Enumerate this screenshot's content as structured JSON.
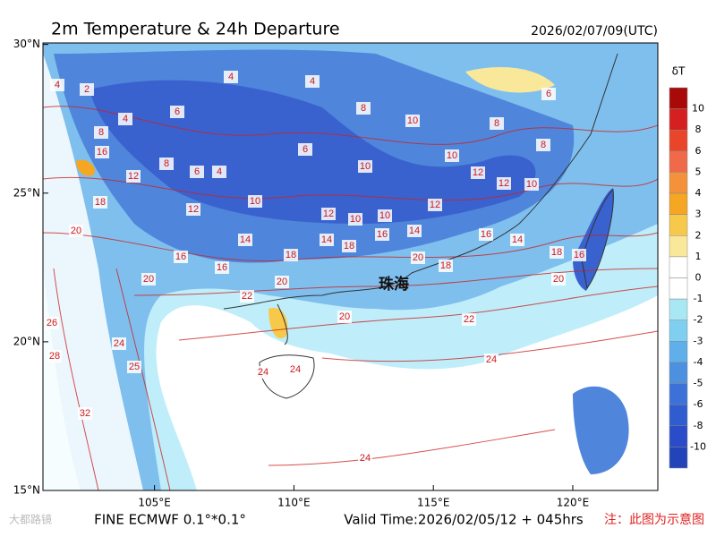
{
  "title": "2m Temperature & 24h Departure",
  "issue_time": "2026/02/07/09(UTC)",
  "map": {
    "xlim": [
      101,
      123.05
    ],
    "ylim": [
      15,
      30.05
    ],
    "xticks": [
      {
        "value": 105,
        "label": "105°E"
      },
      {
        "value": 110,
        "label": "110°E"
      },
      {
        "value": 115,
        "label": "115°E"
      },
      {
        "value": 120,
        "label": "120°E"
      }
    ],
    "yticks": [
      {
        "value": 15,
        "label": "15°N"
      },
      {
        "value": 20,
        "label": "20°N"
      },
      {
        "value": 25,
        "label": "25°N"
      },
      {
        "value": 30,
        "label": "30°N"
      }
    ],
    "city_label": "珠海",
    "contour_labels": [
      2,
      4,
      4,
      8,
      16,
      4,
      4,
      6,
      8,
      10,
      6,
      8,
      6,
      4,
      12,
      10,
      10,
      12,
      12,
      12,
      10,
      12,
      12,
      10,
      10,
      14,
      18,
      16,
      14,
      14,
      18,
      16,
      16,
      20,
      20,
      20,
      18,
      16,
      14,
      18,
      16,
      20,
      22,
      24,
      22,
      20,
      24,
      24,
      24,
      25,
      28,
      24,
      32,
      18,
      20,
      26,
      6,
      8,
      8,
      10
    ]
  },
  "colorbar": {
    "label": "δT",
    "levels": [
      10,
      8,
      6,
      5,
      4,
      3,
      2,
      1,
      0,
      -1,
      -2,
      -3,
      -4,
      -5,
      -6,
      -8,
      -10
    ],
    "colors": [
      "#a80a0a",
      "#d42020",
      "#e8452a",
      "#f06a4a",
      "#f3923a",
      "#f5a623",
      "#f7c94a",
      "#fae89a",
      "#ffffff",
      "#ffffff",
      "#a8e8f5",
      "#7fd0f0",
      "#5fb0ea",
      "#4c90e0",
      "#3c72d8",
      "#2f5ccf",
      "#2a4cc8",
      "#2244b8"
    ]
  },
  "footer": {
    "model": "FINE ECMWF 0.1°*0.1°",
    "valid_time": "Valid Time:2026/02/05/12 + 045hrs",
    "note": "注：此图为示意图",
    "watermark": "大都路镜"
  }
}
